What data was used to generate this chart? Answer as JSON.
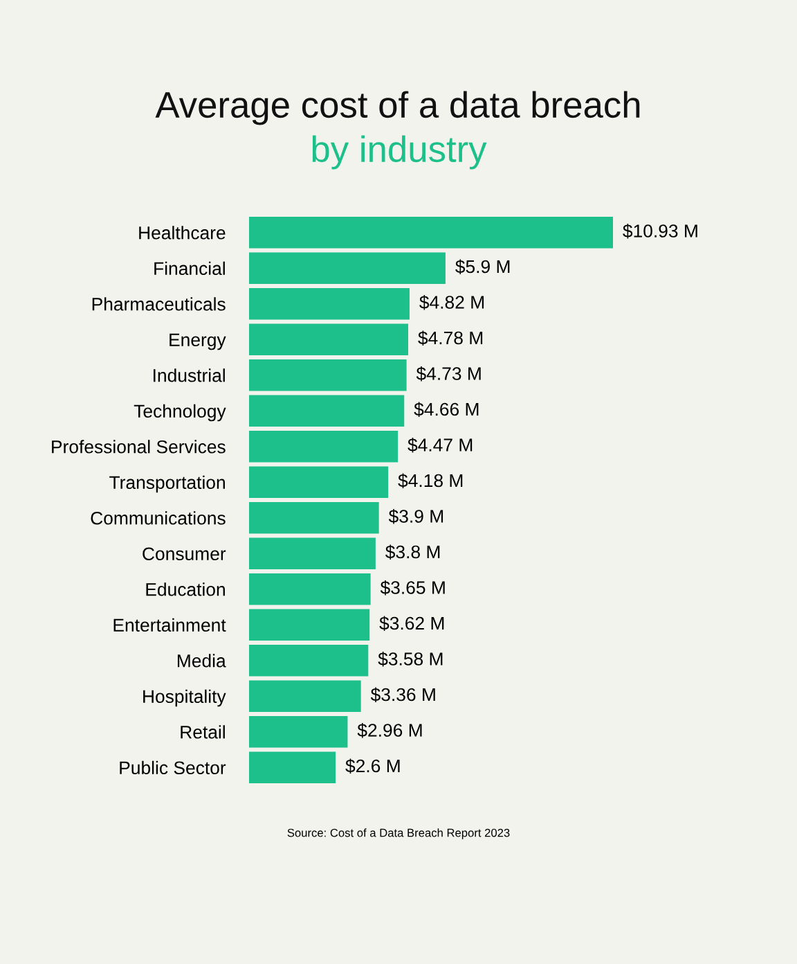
{
  "chart_data": {
    "type": "bar",
    "orientation": "horizontal",
    "title": "Average cost of a data breach",
    "subtitle": "by industry",
    "categories": [
      "Healthcare",
      "Financial",
      "Pharmaceuticals",
      "Energy",
      "Industrial",
      "Technology",
      "Professional Services",
      "Transportation",
      "Communications",
      "Consumer",
      "Education",
      "Entertainment",
      "Media",
      "Hospitality",
      "Retail",
      "Public Sector"
    ],
    "values": [
      10.93,
      5.9,
      4.82,
      4.78,
      4.73,
      4.66,
      4.47,
      4.18,
      3.9,
      3.8,
      3.65,
      3.62,
      3.58,
      3.36,
      2.96,
      2.6
    ],
    "value_labels": [
      "$10.93 M",
      "$5.9 M",
      "$4.82 M",
      "$4.78 M",
      "$4.73 M",
      "$4.66 M",
      "$4.47 M",
      "$4.18 M",
      "$3.9 M",
      "$3.8 M",
      "$3.65 M",
      "$3.62 M",
      "$3.58 M",
      "$3.36 M",
      "$2.96 M",
      "$2.6 M"
    ],
    "color": "#1dbf8a",
    "annotations": [
      "Source: Cost of a Data Breach Report 2023"
    ]
  }
}
